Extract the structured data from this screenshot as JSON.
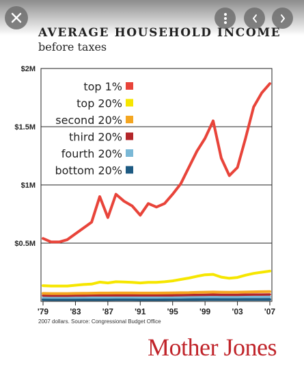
{
  "viewer": {
    "close_icon": "close-icon",
    "more_icon": "more-vertical-icon",
    "prev_icon": "chevron-left-icon",
    "next_icon": "chevron-right-icon"
  },
  "figure": {
    "title": "AVERAGE HOUSEHOLD INCOME",
    "subtitle": "before taxes",
    "source": "2007 dollars. Source: Congressional Budget Office",
    "brand": "Mother Jones",
    "brand_color": "#c0242a"
  },
  "chart_data": {
    "type": "line",
    "title": "AVERAGE HOUSEHOLD INCOME",
    "subtitle": "before taxes",
    "ylim": [
      0,
      2000000
    ],
    "y_ticks": [
      {
        "value": 500000,
        "label": "$0.5M"
      },
      {
        "value": 1000000,
        "label": "$1M"
      },
      {
        "value": 1500000,
        "label": "$1.5M"
      },
      {
        "value": 2000000,
        "label": "$2M"
      }
    ],
    "xlim": [
      1979,
      2007
    ],
    "x_ticks": [
      {
        "value": 1979,
        "label": "'79"
      },
      {
        "value": 1983,
        "label": "'83"
      },
      {
        "value": 1987,
        "label": "'87"
      },
      {
        "value": 1991,
        "label": "'91"
      },
      {
        "value": 1995,
        "label": "'95"
      },
      {
        "value": 1999,
        "label": "'99"
      },
      {
        "value": 2003,
        "label": "'03"
      },
      {
        "value": 2007,
        "label": "'07"
      }
    ],
    "grid": true,
    "legend_position": "top-left",
    "x": [
      1979,
      1980,
      1981,
      1982,
      1983,
      1984,
      1985,
      1986,
      1987,
      1988,
      1989,
      1990,
      1991,
      1992,
      1993,
      1994,
      1995,
      1996,
      1997,
      1998,
      1999,
      2000,
      2001,
      2002,
      2003,
      2004,
      2005,
      2006,
      2007
    ],
    "series": [
      {
        "name": "top 1%",
        "color": "#e8443a",
        "values": [
          540000,
          510000,
          510000,
          530000,
          580000,
          630000,
          680000,
          900000,
          720000,
          920000,
          860000,
          820000,
          740000,
          840000,
          810000,
          840000,
          920000,
          1010000,
          1150000,
          1290000,
          1400000,
          1550000,
          1230000,
          1080000,
          1150000,
          1400000,
          1670000,
          1790000,
          1870000
        ]
      },
      {
        "name": "top 20%",
        "color": "#f6e600",
        "values": [
          135000,
          132000,
          132000,
          132000,
          138000,
          145000,
          148000,
          165000,
          158000,
          168000,
          166000,
          163000,
          158000,
          163000,
          163000,
          168000,
          176000,
          188000,
          200000,
          215000,
          228000,
          232000,
          208000,
          198000,
          205000,
          225000,
          240000,
          250000,
          260000
        ]
      },
      {
        "name": "second 20%",
        "color": "#f4a621",
        "values": [
          68000,
          67000,
          67000,
          67000,
          68000,
          69000,
          70000,
          71000,
          71000,
          72000,
          72000,
          72000,
          71000,
          71000,
          71000,
          72000,
          73000,
          74000,
          75000,
          77000,
          79000,
          80000,
          79000,
          78000,
          79000,
          80000,
          82000,
          83000,
          84000
        ]
      },
      {
        "name": "third 20%",
        "color": "#b3262a",
        "values": [
          50000,
          49000,
          49000,
          49000,
          50000,
          50000,
          51000,
          51000,
          51000,
          52000,
          52000,
          52000,
          51000,
          51000,
          51000,
          52000,
          52000,
          53000,
          54000,
          55000,
          56000,
          57000,
          56000,
          56000,
          56000,
          57000,
          58000,
          58000,
          59000
        ]
      },
      {
        "name": "fourth 20%",
        "color": "#7ab8d6",
        "values": [
          34000,
          33000,
          33000,
          33000,
          33000,
          34000,
          34000,
          34000,
          34000,
          35000,
          35000,
          35000,
          34000,
          34000,
          34000,
          35000,
          35000,
          35000,
          36000,
          37000,
          37000,
          38000,
          37000,
          37000,
          37000,
          38000,
          38000,
          38000,
          39000
        ]
      },
      {
        "name": "bottom 20%",
        "color": "#1d5a82",
        "values": [
          16000,
          15000,
          15000,
          15000,
          15000,
          15000,
          15000,
          15000,
          15000,
          16000,
          16000,
          16000,
          15000,
          15000,
          15000,
          15000,
          16000,
          16000,
          16000,
          16000,
          17000,
          17000,
          17000,
          17000,
          17000,
          17000,
          17000,
          17000,
          17000
        ]
      }
    ]
  }
}
